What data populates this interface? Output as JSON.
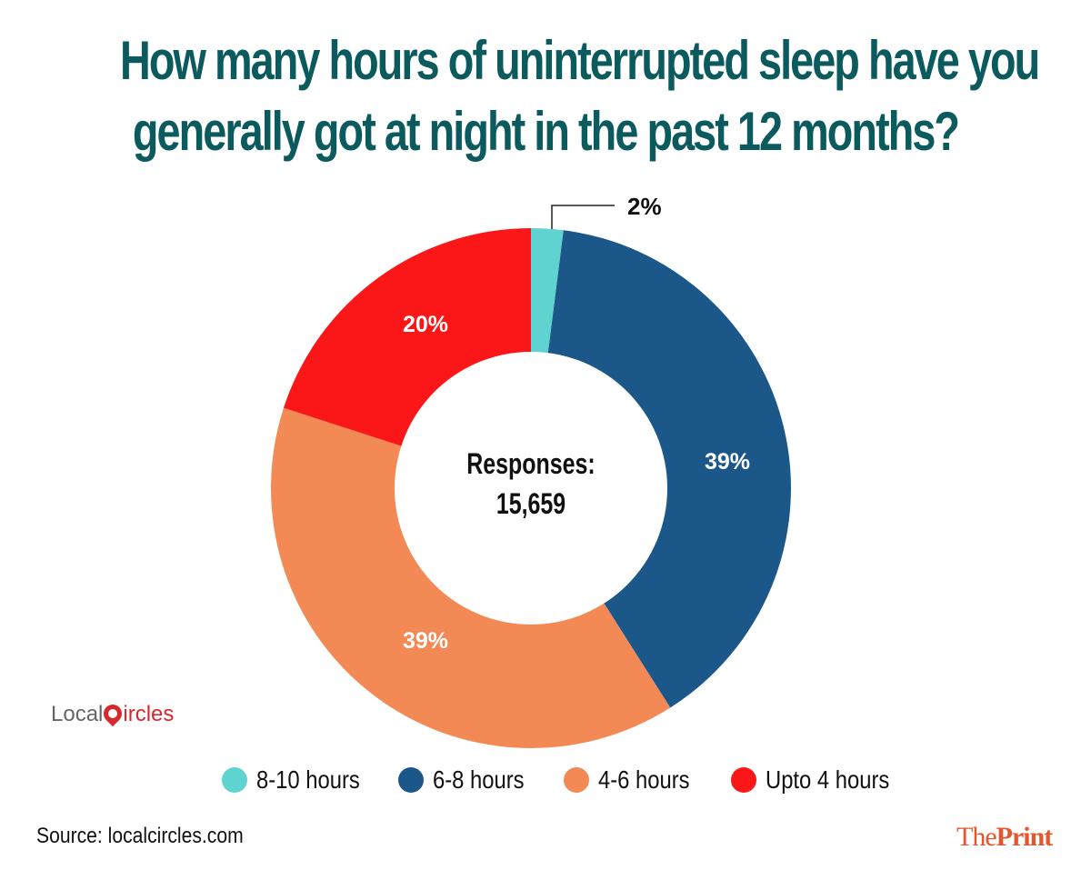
{
  "title": {
    "line1": "How many hours of uninterrupted sleep have you",
    "line2": "generally got at night in the past 12 months?"
  },
  "center": {
    "label": "Responses:",
    "value": "15,659"
  },
  "segments": [
    {
      "name": "8-10 hours",
      "value": 2,
      "label": "2%",
      "color": "#5fd3d0"
    },
    {
      "name": "6-8 hours",
      "value": 39,
      "label": "39%",
      "color": "#1c5789"
    },
    {
      "name": "4-6 hours",
      "value": 39,
      "label": "39%",
      "color": "#f38a55"
    },
    {
      "name": "Upto 4 hours",
      "value": 20,
      "label": "20%",
      "color": "#fb1617"
    }
  ],
  "legend": [
    {
      "label": "8-10 hours",
      "color": "#5fd3d0"
    },
    {
      "label": "6-8 hours",
      "color": "#1c5789"
    },
    {
      "label": "4-6 hours",
      "color": "#f38a55"
    },
    {
      "label": "Upto 4 hours",
      "color": "#fb1617"
    }
  ],
  "footer": {
    "source": "Source: localcircles.com",
    "brand_the": "The",
    "brand_print": "Print"
  },
  "logo": {
    "local": "Local",
    "circles": "ircles"
  },
  "chart_data": {
    "type": "pie",
    "subtype": "donut",
    "title": "How many hours of uninterrupted sleep have you generally got at night in the past 12 months?",
    "categories": [
      "8-10 hours",
      "6-8 hours",
      "4-6 hours",
      "Upto 4 hours"
    ],
    "values": [
      2,
      39,
      39,
      20
    ],
    "unit": "%",
    "colors": [
      "#5fd3d0",
      "#1c5789",
      "#f38a55",
      "#fb1617"
    ],
    "center_annotation": "Responses: 15,659",
    "total_responses": 15659,
    "legend_position": "bottom",
    "source": "localcircles.com"
  }
}
